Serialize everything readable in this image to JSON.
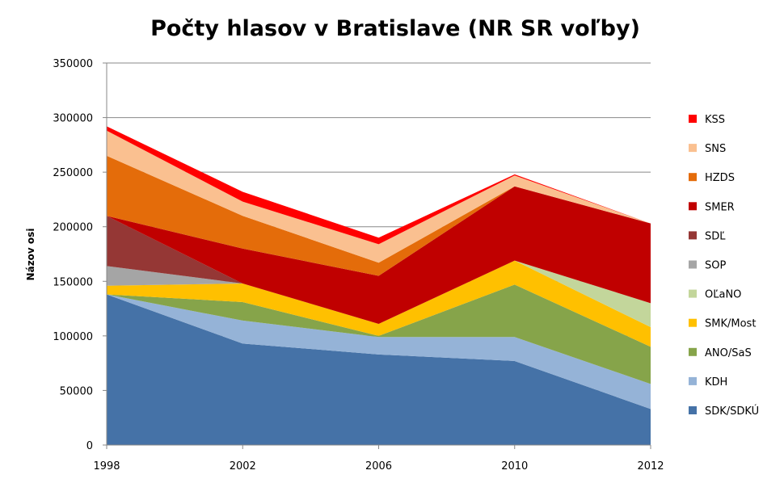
{
  "chart_data": {
    "type": "area",
    "stacked": true,
    "title": "Počty hlasov v Bratislave (NR SR voľby)",
    "xlabel": "",
    "ylabel": "Názov osi",
    "x": [
      "1998",
      "2002",
      "2006",
      "2010",
      "2012"
    ],
    "ylim": [
      0,
      350000
    ],
    "yticks": [
      "0",
      "50000",
      "100000",
      "150000",
      "200000",
      "250000",
      "300000",
      "350000"
    ],
    "grid": true,
    "legend_position": "right",
    "series": [
      {
        "name": "SDK/SDKÚ",
        "color": "#4572A7",
        "values": [
          138000,
          93000,
          83000,
          77000,
          33000
        ]
      },
      {
        "name": "KDH",
        "color": "#95B3D7",
        "values": [
          0,
          21000,
          16000,
          22000,
          23000
        ]
      },
      {
        "name": "ANO/SaS",
        "color": "#86A44A",
        "values": [
          0,
          17000,
          1000,
          48000,
          34000
        ]
      },
      {
        "name": "SMK/Most",
        "color": "#FFC000",
        "values": [
          8000,
          17000,
          11000,
          22000,
          18000
        ]
      },
      {
        "name": "OĽaNO",
        "color": "#C3D69B",
        "values": [
          0,
          0,
          0,
          0,
          22000
        ]
      },
      {
        "name": "SOP",
        "color": "#A5A5A5",
        "values": [
          18000,
          0,
          0,
          0,
          0
        ]
      },
      {
        "name": "SDĽ",
        "color": "#953735",
        "values": [
          46000,
          0,
          0,
          0,
          0
        ]
      },
      {
        "name": "SMER",
        "color": "#C00000",
        "values": [
          0,
          32000,
          44000,
          68000,
          73000
        ]
      },
      {
        "name": "HZDS",
        "color": "#E46C0A",
        "values": [
          55000,
          30000,
          12000,
          0,
          0
        ]
      },
      {
        "name": "SNS",
        "color": "#FAC090",
        "values": [
          23000,
          13000,
          17000,
          10000,
          0
        ]
      },
      {
        "name": "KSS",
        "color": "#FF0000",
        "values": [
          4000,
          9000,
          6000,
          1000,
          0
        ]
      }
    ]
  }
}
